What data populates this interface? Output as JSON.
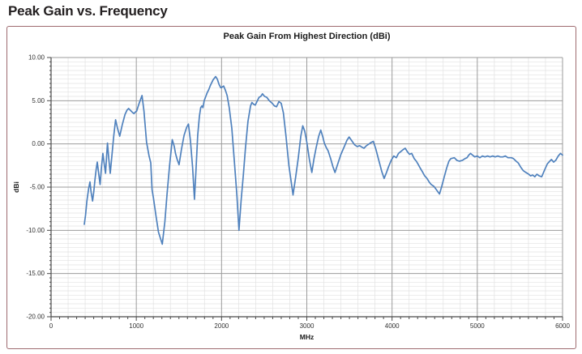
{
  "page": {
    "heading": "Peak Gain vs. Frequency"
  },
  "chart_data": {
    "type": "line",
    "title": "Peak Gain From Highest Direction (dBi)",
    "xlabel": "MHz",
    "ylabel": "dBi",
    "xlim": [
      0,
      6000
    ],
    "ylim": [
      -20,
      10
    ],
    "x_tick_labels": [
      "0",
      "1000",
      "2000",
      "3000",
      "4000",
      "5000",
      "6000"
    ],
    "y_tick_labels": [
      "10.00",
      "5.00",
      "0.00",
      "-5.00",
      "-10.00",
      "-15.00",
      "-20.00"
    ],
    "grid": {
      "x_minor": 200,
      "x_major": 1000,
      "y_minor": 0.5,
      "y_major": 5,
      "x_tick_step": 100
    },
    "legend": "none",
    "colors": {
      "line": "#4F81BD",
      "grid_minor": "#e2e2e2",
      "grid_major": "#9b9b9b",
      "axis": "#4a4a4a",
      "tick_text": "#333333",
      "frame": "#9e6b70"
    },
    "series": [
      {
        "name": "Peak Gain",
        "color": "#4F81BD",
        "points": [
          [
            390,
            -9.3
          ],
          [
            405,
            -8.2
          ],
          [
            420,
            -6.6
          ],
          [
            440,
            -5.2
          ],
          [
            456,
            -4.4
          ],
          [
            470,
            -5.6
          ],
          [
            487,
            -6.6
          ],
          [
            500,
            -5.6
          ],
          [
            515,
            -4.1
          ],
          [
            530,
            -2.9
          ],
          [
            542,
            -2.1
          ],
          [
            558,
            -3.4
          ],
          [
            575,
            -4.7
          ],
          [
            590,
            -2.9
          ],
          [
            608,
            -1.1
          ],
          [
            625,
            -2.4
          ],
          [
            639,
            -3.4
          ],
          [
            650,
            -1.6
          ],
          [
            662,
            0.1
          ],
          [
            678,
            -1.8
          ],
          [
            694,
            -3.4
          ],
          [
            715,
            -1.2
          ],
          [
            735,
            0.9
          ],
          [
            757,
            2.8
          ],
          [
            780,
            1.8
          ],
          [
            805,
            0.9
          ],
          [
            835,
            2.2
          ],
          [
            867,
            3.4
          ],
          [
            890,
            3.9
          ],
          [
            909,
            4.1
          ],
          [
            930,
            3.9
          ],
          [
            950,
            3.7
          ],
          [
            972,
            3.5
          ],
          [
            990,
            3.7
          ],
          [
            1004,
            3.8
          ],
          [
            1030,
            4.6
          ],
          [
            1067,
            5.6
          ],
          [
            1090,
            3.8
          ],
          [
            1120,
            0.2
          ],
          [
            1150,
            -1.4
          ],
          [
            1170,
            -2.2
          ],
          [
            1185,
            -5.3
          ],
          [
            1200,
            -6.2
          ],
          [
            1230,
            -8.3
          ],
          [
            1260,
            -10.2
          ],
          [
            1305,
            -11.6
          ],
          [
            1335,
            -9.0
          ],
          [
            1360,
            -5.9
          ],
          [
            1390,
            -2.5
          ],
          [
            1422,
            0.5
          ],
          [
            1445,
            -0.3
          ],
          [
            1460,
            -1.1
          ],
          [
            1480,
            -1.8
          ],
          [
            1501,
            -2.4
          ],
          [
            1530,
            -0.6
          ],
          [
            1560,
            1.0
          ],
          [
            1590,
            1.9
          ],
          [
            1612,
            2.3
          ],
          [
            1635,
            0.4
          ],
          [
            1660,
            -2.7
          ],
          [
            1682,
            -6.4
          ],
          [
            1700,
            -3.0
          ],
          [
            1720,
            1.0
          ],
          [
            1740,
            3.2
          ],
          [
            1755,
            4.2
          ],
          [
            1770,
            4.4
          ],
          [
            1782,
            4.2
          ],
          [
            1796,
            5.0
          ],
          [
            1815,
            5.5
          ],
          [
            1830,
            5.9
          ],
          [
            1850,
            6.3
          ],
          [
            1870,
            6.8
          ],
          [
            1900,
            7.4
          ],
          [
            1930,
            7.8
          ],
          [
            1950,
            7.5
          ],
          [
            1970,
            6.9
          ],
          [
            1990,
            6.5
          ],
          [
            2010,
            6.6
          ],
          [
            2024,
            6.7
          ],
          [
            2045,
            6.2
          ],
          [
            2065,
            5.6
          ],
          [
            2090,
            4.2
          ],
          [
            2120,
            1.8
          ],
          [
            2150,
            -2.0
          ],
          [
            2180,
            -6.0
          ],
          [
            2204,
            -10.0
          ],
          [
            2230,
            -6.5
          ],
          [
            2255,
            -3.6
          ],
          [
            2280,
            -0.5
          ],
          [
            2310,
            2.6
          ],
          [
            2340,
            4.4
          ],
          [
            2356,
            4.8
          ],
          [
            2375,
            4.6
          ],
          [
            2395,
            4.5
          ],
          [
            2415,
            4.9
          ],
          [
            2440,
            5.4
          ],
          [
            2460,
            5.5
          ],
          [
            2480,
            5.8
          ],
          [
            2505,
            5.5
          ],
          [
            2530,
            5.4
          ],
          [
            2560,
            5.0
          ],
          [
            2594,
            4.7
          ],
          [
            2620,
            4.4
          ],
          [
            2645,
            4.3
          ],
          [
            2673,
            4.9
          ],
          [
            2700,
            4.7
          ],
          [
            2725,
            3.6
          ],
          [
            2755,
            1.0
          ],
          [
            2790,
            -2.5
          ],
          [
            2838,
            -5.9
          ],
          [
            2870,
            -3.8
          ],
          [
            2900,
            -1.6
          ],
          [
            2930,
            0.9
          ],
          [
            2952,
            2.1
          ],
          [
            2975,
            1.5
          ],
          [
            3000,
            0.2
          ],
          [
            3030,
            -1.8
          ],
          [
            3059,
            -3.3
          ],
          [
            3085,
            -1.7
          ],
          [
            3110,
            -0.4
          ],
          [
            3140,
            0.9
          ],
          [
            3164,
            1.6
          ],
          [
            3185,
            0.9
          ],
          [
            3205,
            0.1
          ],
          [
            3227,
            -0.4
          ],
          [
            3250,
            -0.8
          ],
          [
            3280,
            -1.7
          ],
          [
            3305,
            -2.6
          ],
          [
            3331,
            -3.3
          ],
          [
            3360,
            -2.4
          ],
          [
            3400,
            -1.2
          ],
          [
            3440,
            -0.3
          ],
          [
            3470,
            0.4
          ],
          [
            3496,
            0.8
          ],
          [
            3525,
            0.4
          ],
          [
            3560,
            -0.1
          ],
          [
            3591,
            -0.3
          ],
          [
            3620,
            -0.2
          ],
          [
            3650,
            -0.4
          ],
          [
            3670,
            -0.5
          ],
          [
            3700,
            -0.2
          ],
          [
            3730,
            0.0
          ],
          [
            3760,
            0.2
          ],
          [
            3781,
            0.3
          ],
          [
            3810,
            -0.6
          ],
          [
            3850,
            -2.1
          ],
          [
            3880,
            -3.2
          ],
          [
            3907,
            -4.0
          ],
          [
            3935,
            -3.3
          ],
          [
            3960,
            -2.6
          ],
          [
            3990,
            -1.9
          ],
          [
            4020,
            -1.4
          ],
          [
            4050,
            -1.6
          ],
          [
            4075,
            -1.1
          ],
          [
            4100,
            -0.9
          ],
          [
            4125,
            -0.7
          ],
          [
            4154,
            -0.5
          ],
          [
            4180,
            -0.9
          ],
          [
            4205,
            -1.2
          ],
          [
            4230,
            -1.1
          ],
          [
            4260,
            -1.7
          ],
          [
            4285,
            -2.0
          ],
          [
            4303,
            -2.3
          ],
          [
            4330,
            -2.8
          ],
          [
            4355,
            -3.2
          ],
          [
            4383,
            -3.7
          ],
          [
            4410,
            -4.0
          ],
          [
            4435,
            -4.4
          ],
          [
            4460,
            -4.7
          ],
          [
            4490,
            -4.9
          ],
          [
            4520,
            -5.3
          ],
          [
            4557,
            -5.8
          ],
          [
            4580,
            -5.0
          ],
          [
            4610,
            -3.9
          ],
          [
            4640,
            -2.8
          ],
          [
            4667,
            -2.0
          ],
          [
            4690,
            -1.7
          ],
          [
            4731,
            -1.6
          ],
          [
            4760,
            -1.9
          ],
          [
            4790,
            -2.0
          ],
          [
            4826,
            -1.9
          ],
          [
            4855,
            -1.7
          ],
          [
            4880,
            -1.6
          ],
          [
            4900,
            -1.3
          ],
          [
            4921,
            -1.1
          ],
          [
            4945,
            -1.3
          ],
          [
            4970,
            -1.5
          ],
          [
            5000,
            -1.4
          ],
          [
            5030,
            -1.6
          ],
          [
            5060,
            -1.4
          ],
          [
            5090,
            -1.5
          ],
          [
            5120,
            -1.4
          ],
          [
            5150,
            -1.5
          ],
          [
            5180,
            -1.4
          ],
          [
            5210,
            -1.5
          ],
          [
            5240,
            -1.4
          ],
          [
            5270,
            -1.5
          ],
          [
            5300,
            -1.5
          ],
          [
            5330,
            -1.4
          ],
          [
            5360,
            -1.6
          ],
          [
            5400,
            -1.6
          ],
          [
            5425,
            -1.7
          ],
          [
            5455,
            -2.0
          ],
          [
            5480,
            -2.2
          ],
          [
            5510,
            -2.7
          ],
          [
            5540,
            -3.1
          ],
          [
            5570,
            -3.3
          ],
          [
            5603,
            -3.5
          ],
          [
            5625,
            -3.7
          ],
          [
            5650,
            -3.6
          ],
          [
            5675,
            -3.8
          ],
          [
            5700,
            -3.5
          ],
          [
            5725,
            -3.7
          ],
          [
            5756,
            -3.8
          ],
          [
            5790,
            -3.0
          ],
          [
            5822,
            -2.3
          ],
          [
            5850,
            -2.0
          ],
          [
            5870,
            -1.8
          ],
          [
            5895,
            -2.1
          ],
          [
            5920,
            -1.9
          ],
          [
            5950,
            -1.4
          ],
          [
            5975,
            -1.1
          ],
          [
            6000,
            -1.3
          ]
        ]
      }
    ]
  }
}
